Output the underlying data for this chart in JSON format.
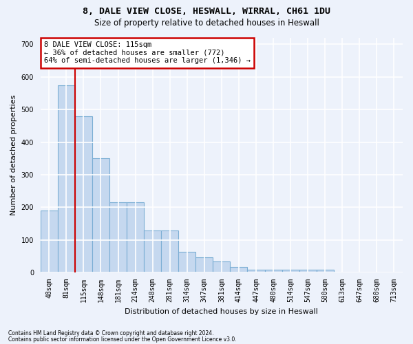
{
  "title_line1": "8, DALE VIEW CLOSE, HESWALL, WIRRAL, CH61 1DU",
  "title_line2": "Size of property relative to detached houses in Heswall",
  "xlabel": "Distribution of detached houses by size in Heswall",
  "ylabel": "Number of detached properties",
  "categories": [
    "48sqm",
    "81sqm",
    "115sqm",
    "148sqm",
    "181sqm",
    "214sqm",
    "248sqm",
    "281sqm",
    "314sqm",
    "347sqm",
    "381sqm",
    "414sqm",
    "447sqm",
    "480sqm",
    "514sqm",
    "547sqm",
    "580sqm",
    "613sqm",
    "647sqm",
    "680sqm",
    "713sqm"
  ],
  "values": [
    190,
    575,
    480,
    350,
    215,
    215,
    130,
    130,
    63,
    46,
    35,
    18,
    8,
    8,
    8,
    8,
    8,
    0,
    0,
    0,
    0
  ],
  "bar_color": "#c5d8ef",
  "bar_edge_color": "#7baed4",
  "red_line_x": 1.5,
  "annotation_text": "8 DALE VIEW CLOSE: 115sqm\n← 36% of detached houses are smaller (772)\n64% of semi-detached houses are larger (1,346) →",
  "annotation_box_color": "#ffffff",
  "annotation_border_color": "#cc0000",
  "ylim": [
    0,
    720
  ],
  "yticks": [
    0,
    100,
    200,
    300,
    400,
    500,
    600,
    700
  ],
  "footer_line1": "Contains HM Land Registry data © Crown copyright and database right 2024.",
  "footer_line2": "Contains public sector information licensed under the Open Government Licence v3.0.",
  "background_color": "#edf2fb",
  "plot_bg_color": "#edf2fb",
  "grid_color": "#ffffff",
  "title_fontsize": 9.5,
  "subtitle_fontsize": 8.5,
  "tick_fontsize": 7,
  "label_fontsize": 8
}
